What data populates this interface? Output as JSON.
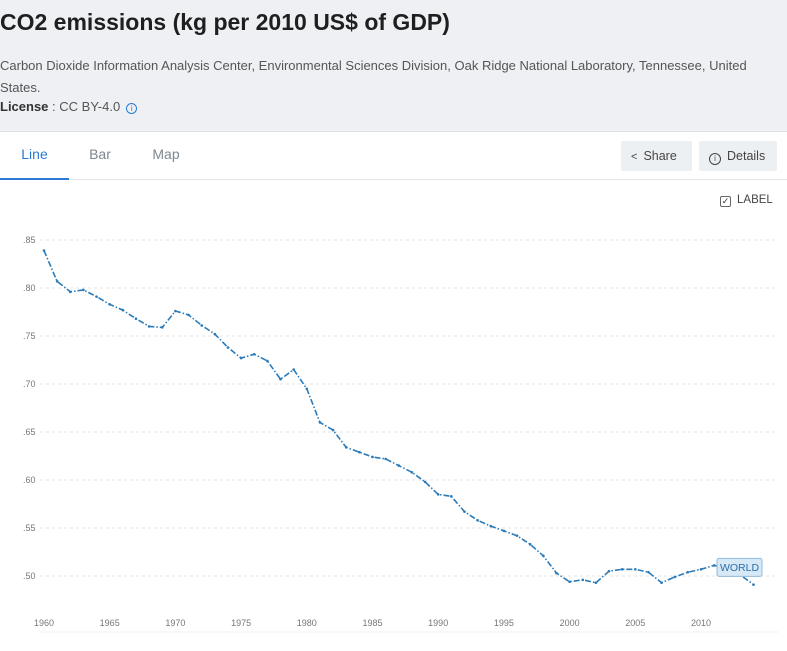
{
  "header": {
    "title": "CO2 emissions (kg per 2010 US$ of GDP)",
    "source": "Carbon Dioxide Information Analysis Center, Environmental Sciences Division, Oak Ridge National Laboratory, Tennessee, United States.",
    "license_label": "License",
    "license_value": " : CC BY-4.0"
  },
  "tabs": [
    {
      "label": "Line",
      "active": true
    },
    {
      "label": "Bar",
      "active": false
    },
    {
      "label": "Map",
      "active": false
    }
  ],
  "buttons": {
    "share_label": "Share",
    "details_label": "Details"
  },
  "label_toggle": {
    "label": "LABEL",
    "checked": true
  },
  "chart_data": {
    "type": "line",
    "title": "",
    "xlabel": "",
    "ylabel": "",
    "x_ticks": [
      1960,
      1965,
      1970,
      1975,
      1980,
      1985,
      1990,
      1995,
      2000,
      2005,
      2010
    ],
    "y_ticks": [
      0.5,
      0.55,
      0.6,
      0.65,
      0.7,
      0.75,
      0.8,
      0.85
    ],
    "y_tick_labels": [
      ".50",
      ".55",
      ".60",
      ".65",
      ".70",
      ".75",
      ".80",
      ".85"
    ],
    "xlim": [
      1960,
      2014
    ],
    "ylim": [
      0.48,
      0.86
    ],
    "grid": "horizontal-dashed",
    "line_color": "#2b7bb9",
    "series": [
      {
        "name": "WORLD",
        "x": [
          1960,
          1961,
          1962,
          1963,
          1964,
          1965,
          1966,
          1967,
          1968,
          1969,
          1970,
          1971,
          1972,
          1973,
          1974,
          1975,
          1976,
          1977,
          1978,
          1979,
          1980,
          1981,
          1982,
          1983,
          1984,
          1985,
          1986,
          1987,
          1988,
          1989,
          1990,
          1991,
          1992,
          1993,
          1994,
          1995,
          1996,
          1997,
          1998,
          1999,
          2000,
          2001,
          2002,
          2003,
          2004,
          2005,
          2006,
          2007,
          2008,
          2009,
          2010,
          2011,
          2012,
          2013,
          2014
        ],
        "values": [
          0.839,
          0.807,
          0.796,
          0.798,
          0.791,
          0.783,
          0.777,
          0.768,
          0.76,
          0.759,
          0.776,
          0.772,
          0.761,
          0.752,
          0.738,
          0.727,
          0.731,
          0.724,
          0.705,
          0.715,
          0.695,
          0.66,
          0.652,
          0.634,
          0.629,
          0.624,
          0.622,
          0.615,
          0.608,
          0.598,
          0.585,
          0.583,
          0.567,
          0.558,
          0.552,
          0.547,
          0.542,
          0.533,
          0.521,
          0.503,
          0.494,
          0.496,
          0.493,
          0.505,
          0.507,
          0.507,
          0.504,
          0.493,
          0.499,
          0.504,
          0.507,
          0.511,
          0.509,
          0.501,
          0.491
        ]
      }
    ]
  }
}
